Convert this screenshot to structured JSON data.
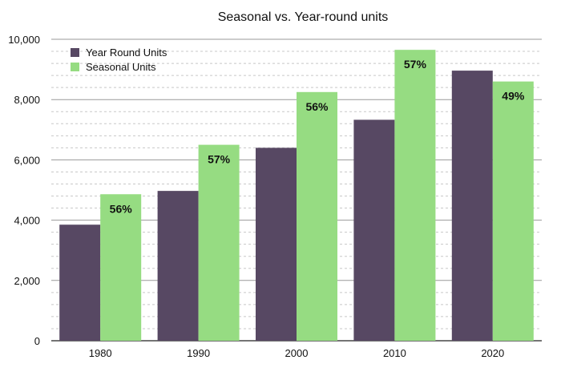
{
  "chart_data": {
    "type": "bar",
    "title": "Seasonal vs. Year-round units",
    "xlabel": "",
    "ylabel": "",
    "categories": [
      "1980",
      "1990",
      "2000",
      "2010",
      "2020"
    ],
    "ylim": [
      0,
      10000
    ],
    "yticks": [
      0,
      2000,
      4000,
      6000,
      8000,
      10000
    ],
    "ytick_labels": [
      "0",
      "2,000",
      "4,000",
      "6,000",
      "8,000",
      "10,000"
    ],
    "grid": true,
    "legend_position": "top-left",
    "series": [
      {
        "name": "Year Round Units",
        "color": "#574863",
        "values": [
          3850,
          4970,
          6400,
          7330,
          8960
        ]
      },
      {
        "name": "Seasonal Units",
        "color": "#96dc82",
        "values": [
          4860,
          6500,
          8250,
          9650,
          8600
        ],
        "data_labels": [
          "56%",
          "57%",
          "56%",
          "57%",
          "49%"
        ]
      }
    ]
  }
}
